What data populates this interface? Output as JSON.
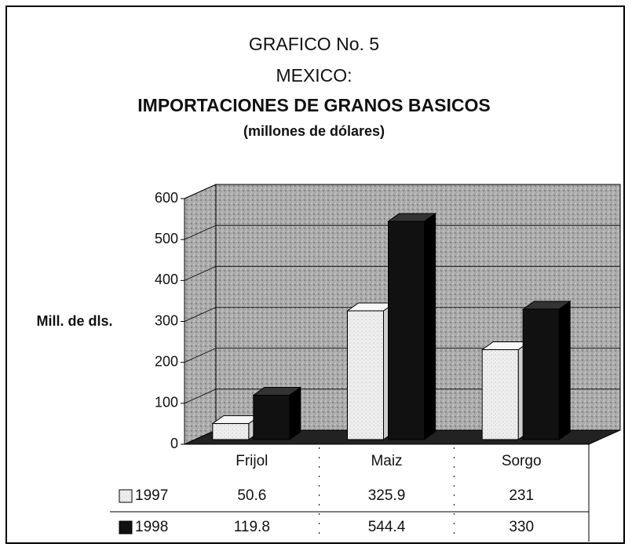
{
  "chart_data": {
    "type": "bar3d",
    "title": [
      "GRAFICO No. 5",
      "MEXICO:",
      "IMPORTACIONES DE GRANOS BASICOS"
    ],
    "subtitle": "(millones de dólares)",
    "y_label": "Mill. de dls.",
    "categories": [
      "Frijol",
      "Maiz",
      "Sorgo"
    ],
    "series": [
      {
        "name": "1997",
        "color": "#e6e6e6",
        "values": [
          50.6,
          325.9,
          231
        ]
      },
      {
        "name": "1998",
        "color": "#111111",
        "values": [
          119.8,
          544.4,
          330
        ]
      }
    ],
    "ylim": [
      0,
      600
    ],
    "yticks": [
      0,
      100,
      200,
      300,
      400,
      500,
      600
    ],
    "grid": true
  }
}
